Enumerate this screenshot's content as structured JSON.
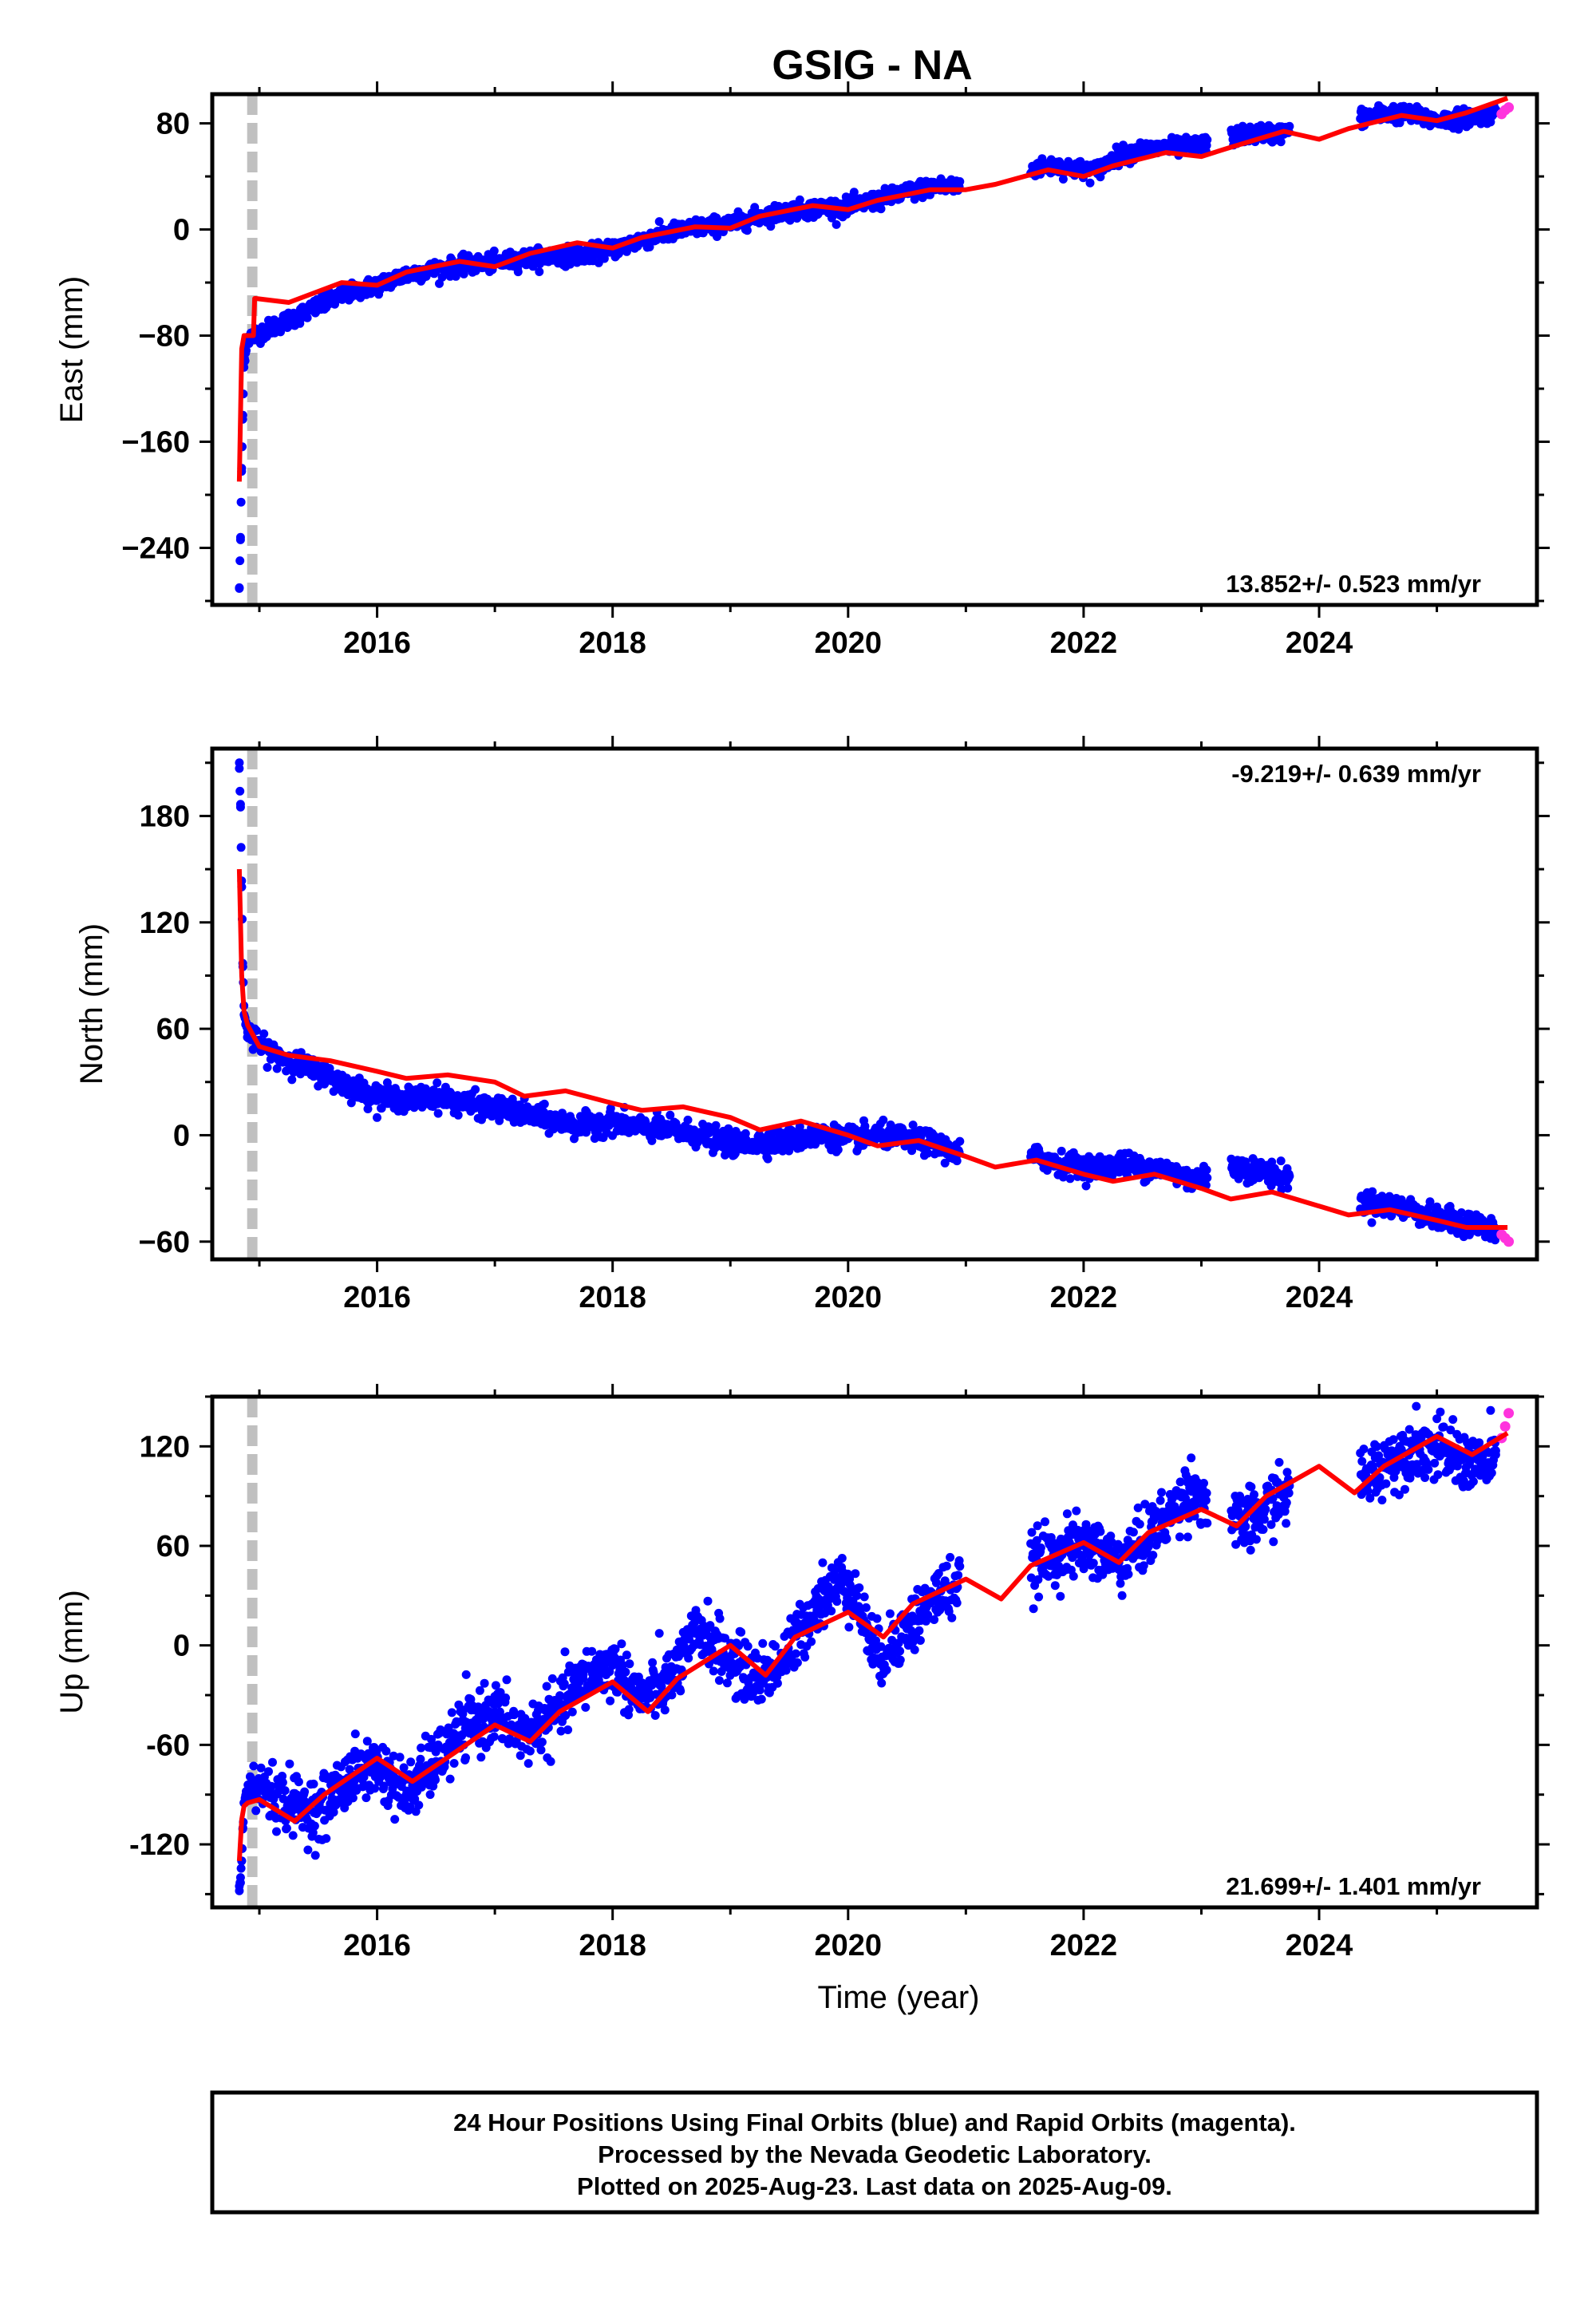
{
  "title": "GSIG - NA",
  "footer": {
    "lines": [
      "24 Hour Positions Using Final Orbits (blue) and Rapid Orbits (magenta).",
      "Processed by the Nevada Geodetic Laboratory.",
      "Plotted on 2025-Aug-23. Last data on 2025-Aug-09."
    ]
  },
  "colors": {
    "final": "#0000ff",
    "rapid": "#ff33dd",
    "model": "#ff0000",
    "event": "#c0c0c0",
    "frame": "#000000"
  },
  "chart_data": [
    {
      "type": "scatter",
      "ylabel": "East (mm)",
      "xlabel": "",
      "rate": "13.852+/- 0.523 mm/yr",
      "rate_position": "bottom-right",
      "xlim": [
        2014.6,
        2025.85
      ],
      "ylim": [
        -283,
        102
      ],
      "xticks": [
        2016,
        2018,
        2020,
        2022,
        2024
      ],
      "yticks": [
        80,
        0,
        -80,
        -160,
        -240
      ],
      "ytick_labels": [
        "80",
        "0",
        "−80",
        "−160",
        "−240"
      ],
      "events": [
        2014.92,
        2014.96
      ],
      "series": [
        {
          "role": "final",
          "x": [
            2014.83,
            2014.84,
            2014.85,
            2014.86,
            2014.87,
            2014.9,
            2015.0,
            2015.25,
            2015.5,
            2015.75,
            2016.0,
            2016.25,
            2016.5,
            2016.75,
            2017.0,
            2017.25,
            2017.5,
            2017.75,
            2018.0,
            2018.25,
            2018.5,
            2018.75,
            2019.0,
            2019.25,
            2019.5,
            2019.75,
            2020.0,
            2020.25,
            2020.5,
            2020.75,
            2020.9,
            2021.6,
            2021.75,
            2022.0,
            2022.1,
            2022.3,
            2022.5,
            2022.75,
            2022.9,
            2023.3,
            2023.5,
            2023.6,
            2024.4,
            2024.6,
            2024.8,
            2025.0,
            2025.2,
            2025.4,
            2025.5
          ],
          "y": [
            -270,
            -232,
            -180,
            -140,
            -100,
            -82,
            -78,
            -68,
            -58,
            -48,
            -42,
            -34,
            -30,
            -27,
            -25,
            -22,
            -20,
            -19,
            -15,
            -8,
            -2,
            2,
            4,
            10,
            14,
            16,
            17,
            22,
            28,
            33,
            32,
            46,
            48,
            45,
            44,
            56,
            60,
            62,
            62,
            70,
            73,
            72,
            85,
            88,
            86,
            82,
            84,
            86,
            88
          ]
        },
        {
          "role": "rapid",
          "x": [
            2025.55,
            2025.58,
            2025.61
          ],
          "y": [
            87,
            90,
            92
          ]
        },
        {
          "role": "model",
          "x": [
            2014.83,
            2014.85,
            2014.87,
            2014.9,
            2014.95,
            2014.96,
            2014.97,
            2015.25,
            2015.7,
            2016.0,
            2016.25,
            2016.7,
            2017.0,
            2017.3,
            2017.7,
            2018.0,
            2018.25,
            2018.7,
            2019.0,
            2019.25,
            2019.7,
            2020.0,
            2020.25,
            2020.7,
            2021.0,
            2021.25,
            2021.7,
            2022.0,
            2022.25,
            2022.7,
            2023.0,
            2023.25,
            2023.7,
            2024.0,
            2024.25,
            2024.7,
            2025.0,
            2025.25,
            2025.6
          ],
          "y": [
            -190,
            -90,
            -80,
            -80,
            -80,
            -52,
            -52,
            -55,
            -40,
            -42,
            -32,
            -24,
            -28,
            -18,
            -10,
            -14,
            -6,
            2,
            1,
            10,
            18,
            15,
            22,
            30,
            30,
            34,
            45,
            40,
            48,
            58,
            55,
            62,
            74,
            68,
            76,
            86,
            82,
            88,
            99
          ]
        }
      ]
    },
    {
      "type": "scatter",
      "ylabel": "North (mm)",
      "xlabel": "",
      "rate": "-9.219+/- 0.639 mm/yr",
      "rate_position": "top-right",
      "xlim": [
        2014.6,
        2025.85
      ],
      "ylim": [
        -70,
        218
      ],
      "xticks": [
        2016,
        2018,
        2020,
        2022,
        2024
      ],
      "yticks": [
        180,
        120,
        60,
        0,
        -60
      ],
      "ytick_labels": [
        "180",
        "120",
        "60",
        "0",
        "−60"
      ],
      "events": [
        2014.92,
        2014.96
      ],
      "series": [
        {
          "role": "final",
          "x": [
            2014.83,
            2014.84,
            2014.85,
            2014.86,
            2014.87,
            2014.9,
            2015.0,
            2015.25,
            2015.5,
            2015.75,
            2016.0,
            2016.25,
            2016.5,
            2016.75,
            2017.0,
            2017.25,
            2017.5,
            2017.75,
            2018.0,
            2018.25,
            2018.5,
            2018.75,
            2019.0,
            2019.25,
            2019.5,
            2019.75,
            2020.0,
            2020.25,
            2020.5,
            2020.75,
            2020.9,
            2021.6,
            2021.75,
            2022.0,
            2022.1,
            2022.3,
            2022.5,
            2022.75,
            2022.9,
            2023.3,
            2023.5,
            2023.6,
            2024.4,
            2024.6,
            2024.8,
            2025.0,
            2025.2,
            2025.4,
            2025.5
          ],
          "y": [
            210,
            185,
            140,
            95,
            68,
            58,
            50,
            42,
            36,
            28,
            22,
            20,
            22,
            18,
            15,
            12,
            8,
            5,
            8,
            4,
            3,
            0,
            -5,
            -4,
            -3,
            0,
            -2,
            0,
            -2,
            -5,
            -10,
            -12,
            -15,
            -18,
            -18,
            -16,
            -18,
            -20,
            -25,
            -18,
            -20,
            -22,
            -38,
            -40,
            -42,
            -48,
            -48,
            -52,
            -55
          ]
        },
        {
          "role": "rapid",
          "x": [
            2025.55,
            2025.58,
            2025.61
          ],
          "y": [
            -56,
            -58,
            -60
          ]
        },
        {
          "role": "model",
          "x": [
            2014.83,
            2014.85,
            2014.87,
            2014.9,
            2014.95,
            2015.0,
            2015.25,
            2015.6,
            2016.0,
            2016.25,
            2016.6,
            2017.0,
            2017.25,
            2017.6,
            2018.0,
            2018.25,
            2018.6,
            2019.0,
            2019.25,
            2019.6,
            2020.0,
            2020.25,
            2020.6,
            2021.0,
            2021.25,
            2021.6,
            2022.0,
            2022.25,
            2022.6,
            2023.0,
            2023.25,
            2023.6,
            2024.0,
            2024.25,
            2024.6,
            2025.0,
            2025.25,
            2025.6
          ],
          "y": [
            150,
            90,
            70,
            62,
            56,
            50,
            45,
            42,
            36,
            32,
            34,
            30,
            22,
            25,
            18,
            14,
            16,
            10,
            3,
            8,
            0,
            -6,
            -3,
            -12,
            -18,
            -14,
            -22,
            -26,
            -22,
            -30,
            -36,
            -32,
            -40,
            -45,
            -42,
            -48,
            -52,
            -52
          ]
        }
      ]
    },
    {
      "type": "scatter",
      "ylabel": "Up (mm)",
      "xlabel": "Time (year)",
      "rate": "21.699+/- 1.401 mm/yr",
      "rate_position": "bottom-right",
      "xlim": [
        2014.6,
        2025.85
      ],
      "ylim": [
        -158,
        150
      ],
      "xticks": [
        2016,
        2018,
        2020,
        2022,
        2024
      ],
      "yticks": [
        120,
        60,
        0,
        -60,
        -120
      ],
      "ytick_labels": [
        "120",
        "60",
        "0",
        "-60",
        "-120"
      ],
      "events": [
        2014.92,
        2014.96
      ],
      "series": [
        {
          "role": "final",
          "x": [
            2014.83,
            2014.84,
            2014.85,
            2014.86,
            2014.87,
            2014.9,
            2015.0,
            2015.25,
            2015.5,
            2015.75,
            2016.0,
            2016.25,
            2016.5,
            2016.75,
            2017.0,
            2017.25,
            2017.5,
            2017.75,
            2018.0,
            2018.25,
            2018.5,
            2018.75,
            2019.0,
            2019.25,
            2019.5,
            2019.75,
            2020.0,
            2020.25,
            2020.5,
            2020.75,
            2020.9,
            2021.6,
            2021.75,
            2022.0,
            2022.1,
            2022.3,
            2022.5,
            2022.75,
            2022.9,
            2023.3,
            2023.5,
            2023.6,
            2024.4,
            2024.6,
            2024.8,
            2025.0,
            2025.2,
            2025.4,
            2025.5
          ],
          "y": [
            -148,
            -140,
            -130,
            -110,
            -95,
            -88,
            -85,
            -95,
            -100,
            -80,
            -72,
            -90,
            -70,
            -50,
            -40,
            -55,
            -42,
            -20,
            -12,
            -32,
            -20,
            10,
            -10,
            -20,
            -5,
            28,
            40,
            -8,
            10,
            30,
            35,
            50,
            55,
            60,
            58,
            50,
            62,
            80,
            95,
            72,
            78,
            88,
            102,
            112,
            120,
            118,
            112,
            108,
            115
          ]
        },
        {
          "role": "rapid",
          "x": [
            2025.55,
            2025.58,
            2025.61
          ],
          "y": [
            125,
            132,
            140
          ]
        },
        {
          "role": "model",
          "x": [
            2014.83,
            2014.85,
            2014.87,
            2014.9,
            2014.95,
            2015.0,
            2015.3,
            2015.55,
            2016.0,
            2016.3,
            2016.55,
            2017.0,
            2017.3,
            2017.55,
            2018.0,
            2018.3,
            2018.55,
            2019.0,
            2019.3,
            2019.55,
            2020.0,
            2020.3,
            2020.55,
            2021.0,
            2021.3,
            2021.55,
            2022.0,
            2022.3,
            2022.55,
            2023.0,
            2023.3,
            2023.55,
            2024.0,
            2024.3,
            2024.55,
            2025.0,
            2025.3,
            2025.6
          ],
          "y": [
            -130,
            -105,
            -97,
            -95,
            -94,
            -93,
            -106,
            -90,
            -68,
            -82,
            -70,
            -48,
            -58,
            -40,
            -22,
            -40,
            -20,
            0,
            -18,
            5,
            20,
            5,
            25,
            40,
            28,
            48,
            62,
            50,
            68,
            82,
            72,
            90,
            108,
            92,
            108,
            126,
            115,
            128
          ]
        }
      ]
    }
  ]
}
